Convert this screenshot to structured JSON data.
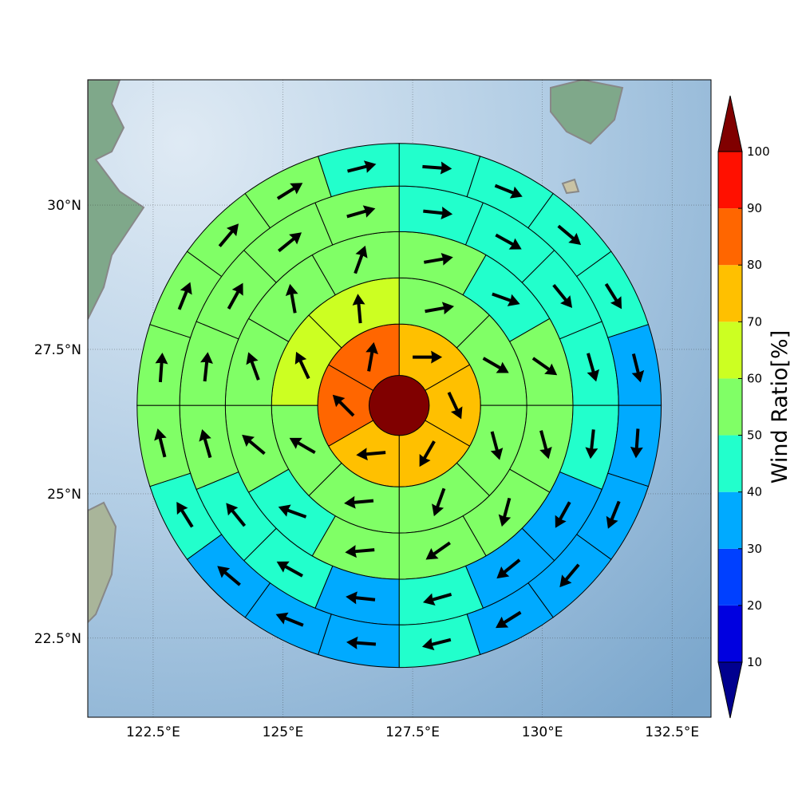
{
  "chart_data": {
    "type": "polar-sectors",
    "colorbar_label": "Wind Ratio[%]",
    "xlim": [
      121.24,
      133.25
    ],
    "ylim": [
      21.13,
      32.17
    ],
    "xticks": [
      {
        "value": 122.5,
        "label": "122.5°E"
      },
      {
        "value": 125,
        "label": "125°E"
      },
      {
        "value": 127.5,
        "label": "127.5°E"
      },
      {
        "value": 130,
        "label": "130°E"
      },
      {
        "value": 132.5,
        "label": "132.5°E"
      }
    ],
    "yticks": [
      {
        "value": 22.5,
        "label": "22.5°N"
      },
      {
        "value": 25,
        "label": "25°N"
      },
      {
        "value": 27.5,
        "label": "27.5°N"
      },
      {
        "value": 30,
        "label": "30°N"
      }
    ],
    "grid": true,
    "center": [
      127.24,
      26.53
    ],
    "ring_edges": [
      0.58,
      1.57,
      2.46,
      3.35,
      4.23,
      5.05
    ],
    "center_value": 105,
    "rings": [
      {
        "values": [
          74,
          73,
          72,
          71,
          84,
          83
        ],
        "directions": [
          90,
          155,
          210,
          265,
          315,
          10
        ]
      },
      {
        "values": [
          55,
          55,
          55,
          55,
          55,
          55,
          65,
          65
        ],
        "directions": [
          80,
          120,
          165,
          200,
          265,
          300,
          335,
          355
        ]
      },
      {
        "values": [
          55,
          45,
          55,
          55,
          55,
          55,
          55,
          45,
          55,
          55,
          55,
          55
        ],
        "directions": [
          80,
          110,
          125,
          165,
          195,
          235,
          265,
          290,
          310,
          340,
          350,
          20
        ]
      },
      {
        "values": [
          45,
          45,
          45,
          45,
          45,
          35,
          35,
          45,
          35,
          45,
          45,
          55,
          55,
          55,
          55,
          55
        ],
        "directions": [
          96,
          119,
          141,
          164,
          186,
          209,
          231,
          254,
          276,
          299,
          321,
          344,
          6,
          29,
          51,
          74
        ]
      },
      {
        "values": [
          45,
          45,
          45,
          45,
          35,
          35,
          35,
          35,
          35,
          45,
          35,
          35,
          35,
          45,
          55,
          55,
          55,
          55,
          55,
          45
        ],
        "directions": [
          94,
          112,
          130,
          148,
          166,
          184,
          202,
          220,
          238,
          256,
          274,
          292,
          310,
          328,
          346,
          4,
          22,
          40,
          58,
          76
        ]
      }
    ],
    "levels": [
      10,
      20,
      30,
      40,
      50,
      60,
      70,
      80,
      90,
      100
    ],
    "colors": [
      "#00008f",
      "#0000e0",
      "#0040ff",
      "#00aaff",
      "#22ffcc",
      "#80ff66",
      "#ccff22",
      "#ffc000",
      "#ff6600",
      "#ff1000",
      "#800000"
    ]
  }
}
